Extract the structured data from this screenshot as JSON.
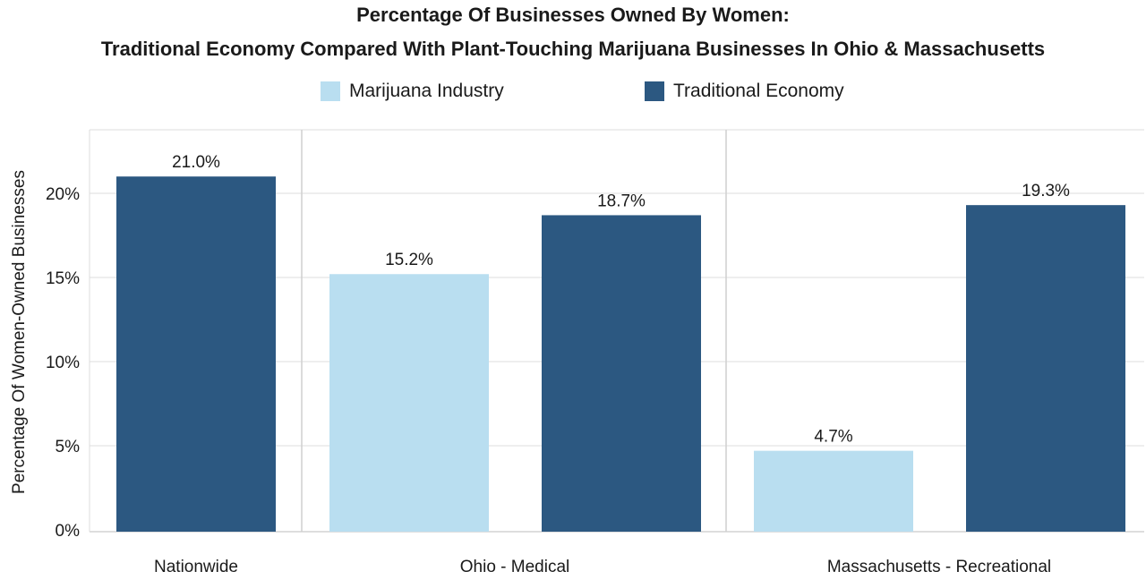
{
  "chart_data": {
    "type": "bar",
    "title": "Percentage Of Businesses Owned By Women:",
    "subtitle": "Traditional Economy Compared With Plant-Touching Marijuana Businesses In Ohio & Massachusetts",
    "xlabel": "",
    "ylabel": "Percentage Of Women-Owned Businesses",
    "ylim": [
      0,
      20
    ],
    "yticks": [
      "0%",
      "5%",
      "10%",
      "15%",
      "20%"
    ],
    "categories": [
      "Nationwide",
      "Ohio - Medical",
      "Massachusetts - Recreational"
    ],
    "series": [
      {
        "name": "Marijuana Industry",
        "color": "#b9def0",
        "values": [
          null,
          15.2,
          4.7
        ],
        "labels": [
          "",
          "15.2%",
          "4.7%"
        ]
      },
      {
        "name": "Traditional Economy",
        "color": "#2c5881",
        "values": [
          21.0,
          18.7,
          19.3
        ],
        "labels": [
          "21.0%",
          "18.7%",
          "19.3%"
        ]
      }
    ],
    "legend_position": "top",
    "grid": true
  }
}
